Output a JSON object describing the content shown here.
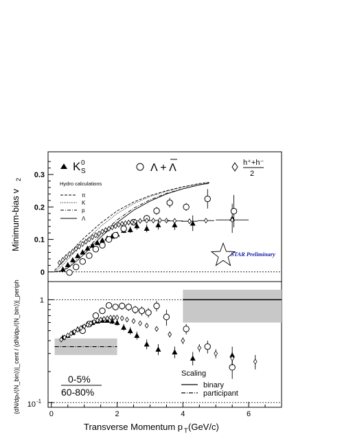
{
  "chart_data": [
    {
      "type": "scatter",
      "panel": "top",
      "ylabel": "Minimum-bias v",
      "ylabel_sub": "2",
      "ylim": [
        -0.03,
        0.37
      ],
      "xlim": [
        -0.1,
        7.0
      ],
      "yticks": [
        0,
        0.1,
        0.2,
        0.3
      ],
      "ytick_labels": [
        "0",
        "0.1",
        "0.2",
        "0.3"
      ],
      "legend": {
        "k0s": "K",
        "k0s_sub": "S",
        "k0s_sup": "0",
        "lambda": "Λ + Λ",
        "hadron_num": "h⁺+h⁻",
        "hadron_den": "2"
      },
      "hydro": {
        "title": "Hydro calculations",
        "labels": [
          "π",
          "K",
          "p",
          "Λ"
        ],
        "curves": [
          {
            "name": "π",
            "style": "dash",
            "x": [
              0.1,
              0.3,
              0.5,
              0.8,
              1.0,
              1.5,
              2.0,
              2.5,
              3.0,
              3.5,
              4.0,
              4.5,
              4.8
            ],
            "y": [
              0.005,
              0.025,
              0.05,
              0.085,
              0.105,
              0.15,
              0.188,
              0.215,
              0.235,
              0.25,
              0.262,
              0.272,
              0.276
            ]
          },
          {
            "name": "K",
            "style": "dot",
            "x": [
              0.1,
              0.3,
              0.5,
              0.8,
              1.0,
              1.5,
              2.0,
              2.5,
              3.0,
              3.5,
              4.0,
              4.5,
              4.8
            ],
            "y": [
              0.002,
              0.016,
              0.038,
              0.072,
              0.093,
              0.14,
              0.18,
              0.21,
              0.232,
              0.248,
              0.261,
              0.271,
              0.275
            ]
          },
          {
            "name": "p",
            "style": "dashdot",
            "x": [
              0.1,
              0.3,
              0.5,
              0.8,
              1.0,
              1.5,
              2.0,
              2.5,
              3.0,
              3.5,
              4.0,
              4.5,
              4.8
            ],
            "y": [
              0.0,
              0.004,
              0.015,
              0.042,
              0.062,
              0.115,
              0.16,
              0.196,
              0.222,
              0.242,
              0.256,
              0.268,
              0.273
            ]
          },
          {
            "name": "Λ",
            "style": "solid",
            "x": [
              0.1,
              0.3,
              0.5,
              0.8,
              1.0,
              1.5,
              2.0,
              2.5,
              3.0,
              3.5,
              4.0,
              4.5,
              4.8
            ],
            "y": [
              0.0,
              0.003,
              0.012,
              0.036,
              0.055,
              0.107,
              0.152,
              0.19,
              0.218,
              0.24,
              0.256,
              0.268,
              0.273
            ]
          }
        ]
      },
      "series": [
        {
          "name": "K",
          "marker": "filled-triangle",
          "x": [
            0.35,
            0.5,
            0.65,
            0.8,
            0.95,
            1.1,
            1.25,
            1.4,
            1.55,
            1.7,
            1.85,
            2.0,
            2.2,
            2.4,
            2.6,
            2.9,
            3.25,
            3.75,
            4.3,
            5.5
          ],
          "y": [
            0.008,
            0.022,
            0.037,
            0.05,
            0.061,
            0.073,
            0.082,
            0.09,
            0.098,
            0.104,
            0.11,
            0.116,
            0.128,
            0.13,
            0.142,
            0.134,
            0.145,
            0.145,
            0.15,
            0.165
          ],
          "err": [
            0.005,
            0.005,
            0.005,
            0.005,
            0.005,
            0.005,
            0.005,
            0.006,
            0.006,
            0.006,
            0.007,
            0.007,
            0.009,
            0.01,
            0.012,
            0.012,
            0.015,
            0.016,
            0.024,
            0.045
          ]
        },
        {
          "name": "Λ + Λ",
          "marker": "open-circle",
          "x": [
            0.55,
            0.75,
            0.95,
            1.15,
            1.35,
            1.55,
            1.75,
            1.95,
            2.2,
            2.5,
            2.9,
            3.2,
            3.6,
            4.1,
            4.75,
            5.55
          ],
          "y": [
            -0.002,
            0.015,
            0.032,
            0.05,
            0.07,
            0.082,
            0.1,
            0.113,
            0.133,
            0.153,
            0.165,
            0.188,
            0.213,
            0.2,
            0.225,
            0.187
          ],
          "err": [
            0.006,
            0.005,
            0.005,
            0.005,
            0.005,
            0.005,
            0.006,
            0.006,
            0.006,
            0.008,
            0.01,
            0.012,
            0.015,
            0.012,
            0.03,
            0.05
          ]
        },
        {
          "name": "h⁺+h⁻ / 2",
          "marker": "open-diamond",
          "x": [
            0.25,
            0.35,
            0.45,
            0.55,
            0.65,
            0.75,
            0.85,
            0.95,
            1.05,
            1.15,
            1.25,
            1.35,
            1.45,
            1.55,
            1.65,
            1.75,
            1.85,
            1.95,
            2.05,
            2.15,
            2.25,
            2.35,
            2.45,
            2.55,
            2.7,
            2.9,
            3.1,
            3.3,
            3.5,
            3.75,
            4.2,
            4.7,
            5.5
          ],
          "y": [
            0.028,
            0.037,
            0.046,
            0.055,
            0.063,
            0.071,
            0.078,
            0.086,
            0.093,
            0.1,
            0.107,
            0.113,
            0.118,
            0.124,
            0.129,
            0.133,
            0.137,
            0.141,
            0.145,
            0.148,
            0.15,
            0.152,
            0.153,
            0.155,
            0.157,
            0.158,
            0.158,
            0.159,
            0.158,
            0.157,
            0.156,
            0.158,
            0.16
          ],
          "xerr": [
            0,
            0,
            0,
            0,
            0,
            0,
            0,
            0,
            0,
            0,
            0,
            0,
            0,
            0,
            0,
            0,
            0,
            0,
            0,
            0,
            0,
            0,
            0,
            0,
            0.1,
            0.1,
            0.1,
            0.1,
            0.1,
            0.25,
            0.25,
            0.25,
            0.5
          ]
        }
      ],
      "annotation": "STAR Preliminary"
    },
    {
      "type": "scatter",
      "panel": "bottom",
      "xlabel": "Transverse Momentum p",
      "xlabel_sub": "T",
      "xlabel_unit": " (GeV/c)",
      "ylabel": "(dN/dpₜ/⟨N_bin⟩)|_cent / (dN/dpₜ/⟨N_bin⟩)|_periph",
      "yscale": "log",
      "ylim": [
        0.09,
        1.5
      ],
      "xlim": [
        -0.1,
        7.0
      ],
      "xticks": [
        0,
        2,
        4,
        6
      ],
      "xtick_labels": [
        "0",
        "2",
        "4",
        "6"
      ],
      "ytick_major_label": "1",
      "ytick_low_label": "10",
      "ytick_low_exp": "-1",
      "centrality_num": "0-5%",
      "centrality_den": "60-80%",
      "scaling": {
        "title": "Scaling",
        "binary": "binary",
        "participant": "participant",
        "binary_level": 1.0,
        "participant_level": 0.35,
        "binary_band": [
          4.0,
          7.0,
          0.6,
          1.25
        ],
        "participant_band": [
          0.1,
          2.0,
          0.29,
          0.42
        ]
      },
      "series": [
        {
          "name": "K",
          "marker": "filled-triangle",
          "x": [
            0.35,
            0.5,
            0.65,
            0.8,
            0.95,
            1.1,
            1.25,
            1.4,
            1.55,
            1.7,
            1.85,
            2.0,
            2.2,
            2.4,
            2.6,
            2.9,
            3.25,
            3.75,
            4.3,
            5.5
          ],
          "y": [
            0.43,
            0.45,
            0.48,
            0.52,
            0.54,
            0.58,
            0.6,
            0.62,
            0.63,
            0.63,
            0.62,
            0.6,
            0.54,
            0.5,
            0.45,
            0.37,
            0.33,
            0.31,
            0.27,
            0.29
          ],
          "err": [
            0.02,
            0.02,
            0.02,
            0.02,
            0.02,
            0.03,
            0.03,
            0.03,
            0.03,
            0.03,
            0.04,
            0.04,
            0.04,
            0.04,
            0.04,
            0.04,
            0.04,
            0.04,
            0.04,
            0.06
          ]
        },
        {
          "name": "Λ + Λ",
          "marker": "open-circle",
          "x": [
            0.95,
            1.15,
            1.35,
            1.55,
            1.75,
            1.95,
            2.15,
            2.35,
            2.55,
            2.75,
            2.95,
            3.2,
            3.5,
            4.1,
            4.75,
            5.5
          ],
          "y": [
            0.5,
            0.58,
            0.7,
            0.78,
            0.88,
            0.85,
            0.87,
            0.85,
            0.8,
            0.78,
            0.75,
            0.87,
            0.68,
            0.52,
            0.35,
            0.22
          ],
          "err": [
            0.03,
            0.03,
            0.04,
            0.05,
            0.06,
            0.06,
            0.07,
            0.07,
            0.07,
            0.08,
            0.08,
            0.1,
            0.12,
            0.06,
            0.05,
            0.05
          ]
        },
        {
          "name": "h⁺+h⁻ / 2",
          "marker": "open-diamond",
          "x": [
            0.3,
            0.4,
            0.5,
            0.6,
            0.7,
            0.8,
            0.9,
            1.0,
            1.1,
            1.2,
            1.3,
            1.4,
            1.5,
            1.6,
            1.7,
            1.8,
            1.9,
            2.0,
            2.15,
            2.3,
            2.5,
            2.7,
            2.9,
            3.2,
            3.6,
            4.0,
            4.5,
            5.0,
            5.5,
            6.2
          ],
          "y": [
            0.41,
            0.43,
            0.45,
            0.47,
            0.49,
            0.51,
            0.53,
            0.55,
            0.57,
            0.59,
            0.61,
            0.63,
            0.64,
            0.65,
            0.66,
            0.67,
            0.67,
            0.67,
            0.66,
            0.64,
            0.62,
            0.59,
            0.56,
            0.52,
            0.46,
            0.4,
            0.34,
            0.3,
            0.27,
            0.25
          ],
          "err": [
            0.01,
            0.01,
            0.01,
            0.01,
            0.01,
            0.01,
            0.01,
            0.01,
            0.01,
            0.01,
            0.01,
            0.01,
            0.01,
            0.01,
            0.01,
            0.01,
            0.01,
            0.01,
            0.02,
            0.02,
            0.02,
            0.02,
            0.02,
            0.02,
            0.03,
            0.03,
            0.03,
            0.03,
            0.04,
            0.04
          ]
        }
      ]
    }
  ]
}
